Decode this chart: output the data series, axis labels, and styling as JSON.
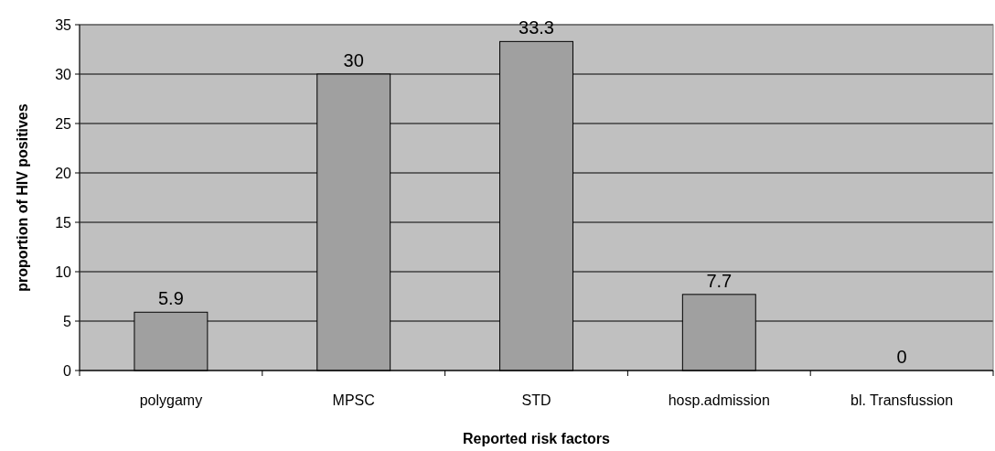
{
  "chart_data": {
    "type": "bar",
    "xlabel": "Reported risk factors",
    "ylabel": "proportion of HIV positives",
    "categories": [
      "polygamy",
      "MPSC",
      "STD",
      "hosp.admission",
      "bl. Transfussion"
    ],
    "values": [
      5.9,
      30,
      33.3,
      7.7,
      0
    ],
    "color": "#a0a0a0",
    "ylim": [
      0,
      35
    ],
    "yticks": [
      0,
      5,
      10,
      15,
      20,
      25,
      30,
      35
    ],
    "grid": "y",
    "data_labels": true
  }
}
